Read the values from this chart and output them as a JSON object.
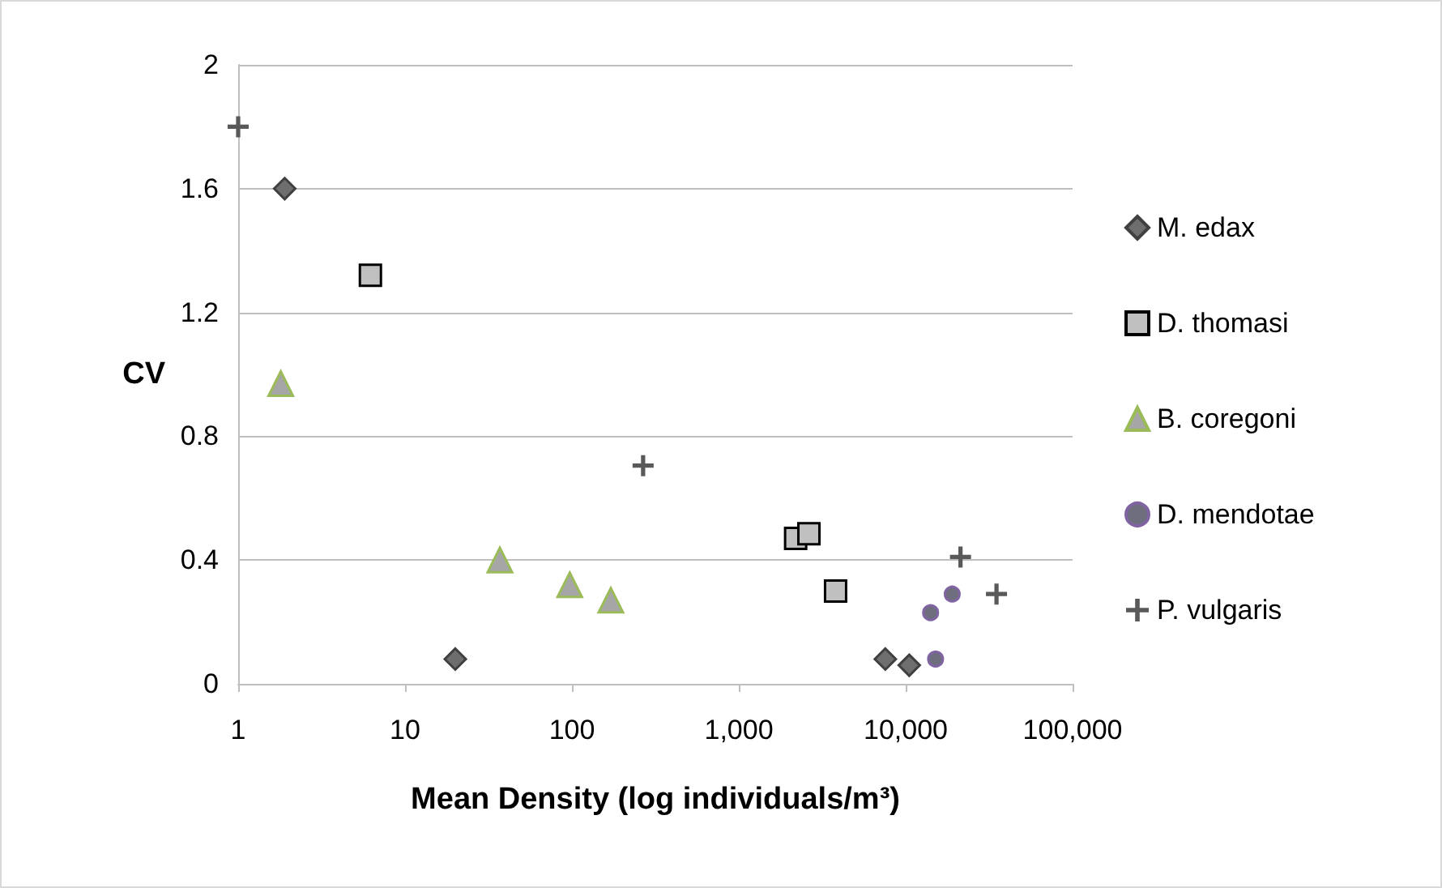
{
  "chart_data": {
    "type": "scatter",
    "xlabel": "Mean Density (log individuals/m³)",
    "ylabel": "CV",
    "log": "x",
    "grid": "y",
    "legend": "right",
    "xlim": [
      1,
      100000
    ],
    "xticks": [
      1,
      10,
      100,
      {
        "value": 1000,
        "label": "1,000"
      },
      {
        "value": 10000,
        "label": "10,000"
      },
      {
        "value": 100000,
        "label": "100,000"
      }
    ],
    "ylim": [
      0,
      2
    ],
    "yticks": [
      0,
      0.4,
      0.8,
      1.2,
      1.6,
      2
    ],
    "series": [
      {
        "name": "M. edax",
        "color": "#6e6e6e",
        "marker": "diamond",
        "x": [
          1.9,
          20,
          7550,
          10500
        ],
        "values": [
          1.6,
          0.08,
          0.08,
          0.06
        ]
      },
      {
        "name": "D. thomasi",
        "color": "#c0c0c0",
        "marker": "square",
        "x": [
          6.2,
          2190,
          2630,
          3800
        ],
        "values": [
          1.32,
          0.47,
          0.485,
          0.3
        ]
      },
      {
        "name": "B. coregoni",
        "color": "#a6a6a6",
        "marker": "triangle",
        "x": [
          1.8,
          37,
          97,
          171
        ],
        "values": [
          0.97,
          0.4,
          0.32,
          0.27
        ]
      },
      {
        "name": "D. mendotae",
        "color": "#6e6e7e",
        "marker": "circle",
        "x": [
          14100,
          19000,
          15100
        ],
        "values": [
          0.23,
          0.29,
          0.08
        ]
      },
      {
        "name": "P. vulgaris",
        "color": "#595959",
        "marker": "cross",
        "x": [
          1,
          267,
          21300,
          35000
        ],
        "values": [
          1.8,
          0.705,
          0.41,
          0.29
        ]
      }
    ]
  }
}
